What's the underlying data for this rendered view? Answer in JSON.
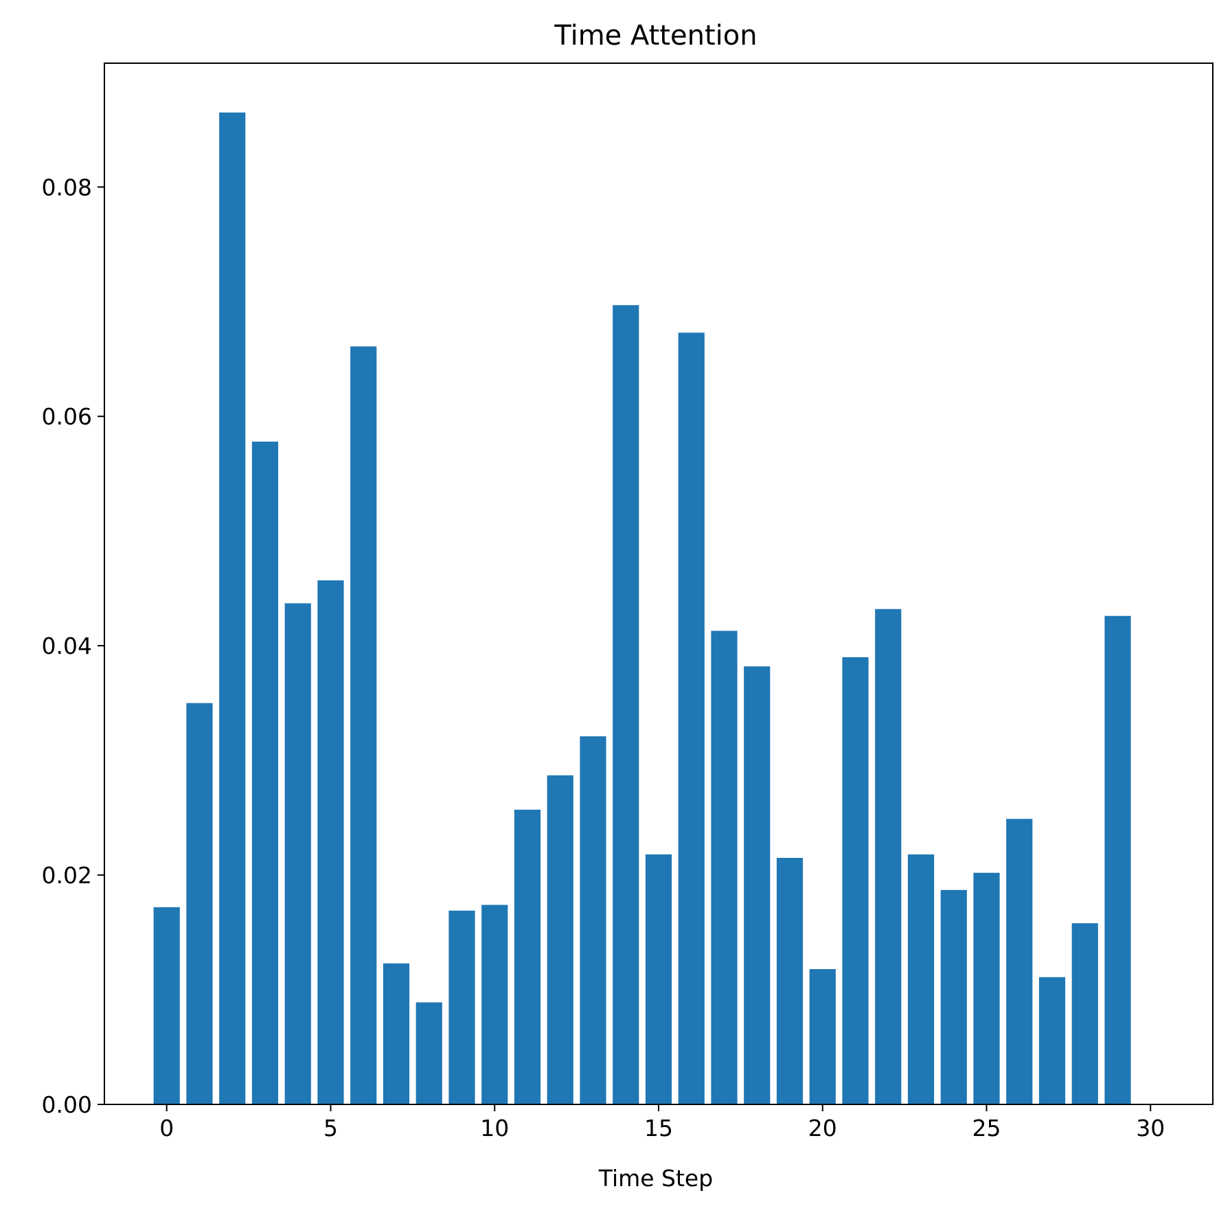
{
  "chart_data": {
    "type": "bar",
    "title": "Time Attention",
    "xlabel": "Time Step",
    "ylabel": "",
    "x": [
      0,
      1,
      2,
      3,
      4,
      5,
      6,
      7,
      8,
      9,
      10,
      11,
      12,
      13,
      14,
      15,
      16,
      17,
      18,
      19,
      20,
      21,
      22,
      23,
      24,
      25,
      26,
      27,
      28,
      29
    ],
    "values": [
      0.0172,
      0.035,
      0.0865,
      0.0578,
      0.0437,
      0.0457,
      0.0661,
      0.0123,
      0.0089,
      0.0169,
      0.0174,
      0.0257,
      0.0287,
      0.0321,
      0.0697,
      0.0218,
      0.0673,
      0.0413,
      0.0382,
      0.0215,
      0.0118,
      0.039,
      0.0432,
      0.0218,
      0.0187,
      0.0202,
      0.0249,
      0.0111,
      0.0158,
      0.0426
    ],
    "xlim": [
      -1.9,
      31.9
    ],
    "ylim": [
      0,
      0.0908
    ],
    "xticks": [
      0,
      5,
      10,
      15,
      20,
      25,
      30
    ],
    "xtick_labels": [
      "0",
      "5",
      "10",
      "15",
      "20",
      "25",
      "30"
    ],
    "yticks": [
      0,
      0.02,
      0.04,
      0.06,
      0.08
    ],
    "ytick_labels": [
      "0.00",
      "0.02",
      "0.04",
      "0.06",
      "0.08"
    ],
    "bar_color": "#1f77b4",
    "grid": false,
    "legend": "none"
  }
}
